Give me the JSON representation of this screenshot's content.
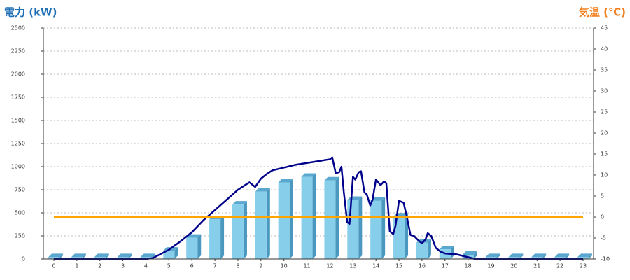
{
  "chart_data": {
    "type": "bar",
    "y_label": "電力 (kW)",
    "y2_label": "気温 (℃)",
    "categories": [
      "0",
      "1",
      "2",
      "3",
      "4",
      "5",
      "6",
      "7",
      "8",
      "9",
      "10",
      "11",
      "12",
      "13",
      "14",
      "15",
      "16",
      "17",
      "18",
      "19",
      "20",
      "21",
      "22",
      "23"
    ],
    "ylim": [
      0,
      2500
    ],
    "yticks": [
      0,
      250,
      500,
      750,
      1000,
      1250,
      1500,
      1750,
      2000,
      2250,
      2500
    ],
    "y2lim": [
      -10,
      45
    ],
    "y2ticks": [
      -10,
      -5,
      0,
      5,
      10,
      15,
      20,
      25,
      30,
      35,
      40,
      45
    ],
    "grid": true,
    "series": [
      {
        "type": "bar",
        "color": "#87ceeb",
        "values": [
          20,
          20,
          20,
          20,
          20,
          90,
          230,
          430,
          590,
          730,
          830,
          890,
          850,
          640,
          630,
          460,
          175,
          105,
          45,
          20,
          20,
          20,
          20,
          20
        ]
      },
      {
        "type": "line",
        "color": "#00008b",
        "x": [
          0,
          4,
          4.3,
          5,
          5.5,
          6,
          6.5,
          7,
          7.5,
          8,
          8.25,
          8.5,
          8.75,
          9,
          9.25,
          9.5,
          10,
          10.5,
          11,
          11.5,
          12,
          12.1,
          12.25,
          12.4,
          12.5,
          12.6,
          12.75,
          12.85,
          13,
          13.1,
          13.25,
          13.35,
          13.5,
          13.6,
          13.75,
          13.85,
          14,
          14.1,
          14.2,
          14.35,
          14.45,
          14.6,
          14.75,
          14.85,
          15,
          15.2,
          15.35,
          15.5,
          15.65,
          15.85,
          16,
          16.15,
          16.25,
          16.4,
          16.6,
          16.8,
          17,
          17.5,
          18,
          18.3,
          23
        ],
        "values": [
          0,
          0,
          10,
          100,
          190,
          290,
          420,
          530,
          640,
          750,
          790,
          830,
          780,
          870,
          920,
          960,
          990,
          1020,
          1040,
          1060,
          1080,
          1100,
          930,
          940,
          1000,
          730,
          400,
          380,
          890,
          860,
          940,
          950,
          720,
          700,
          580,
          640,
          860,
          830,
          800,
          840,
          820,
          300,
          270,
          360,
          630,
          610,
          450,
          260,
          250,
          200,
          170,
          210,
          280,
          250,
          120,
          80,
          60,
          50,
          20,
          0,
          0
        ]
      },
      {
        "type": "line",
        "axis": "y2",
        "color": "#ffa500",
        "values": [
          0,
          0,
          0,
          0,
          0,
          0,
          0,
          0,
          0,
          0,
          0,
          0,
          0,
          0,
          0,
          0,
          0,
          0,
          0,
          0,
          0,
          0,
          0,
          0
        ]
      }
    ]
  }
}
